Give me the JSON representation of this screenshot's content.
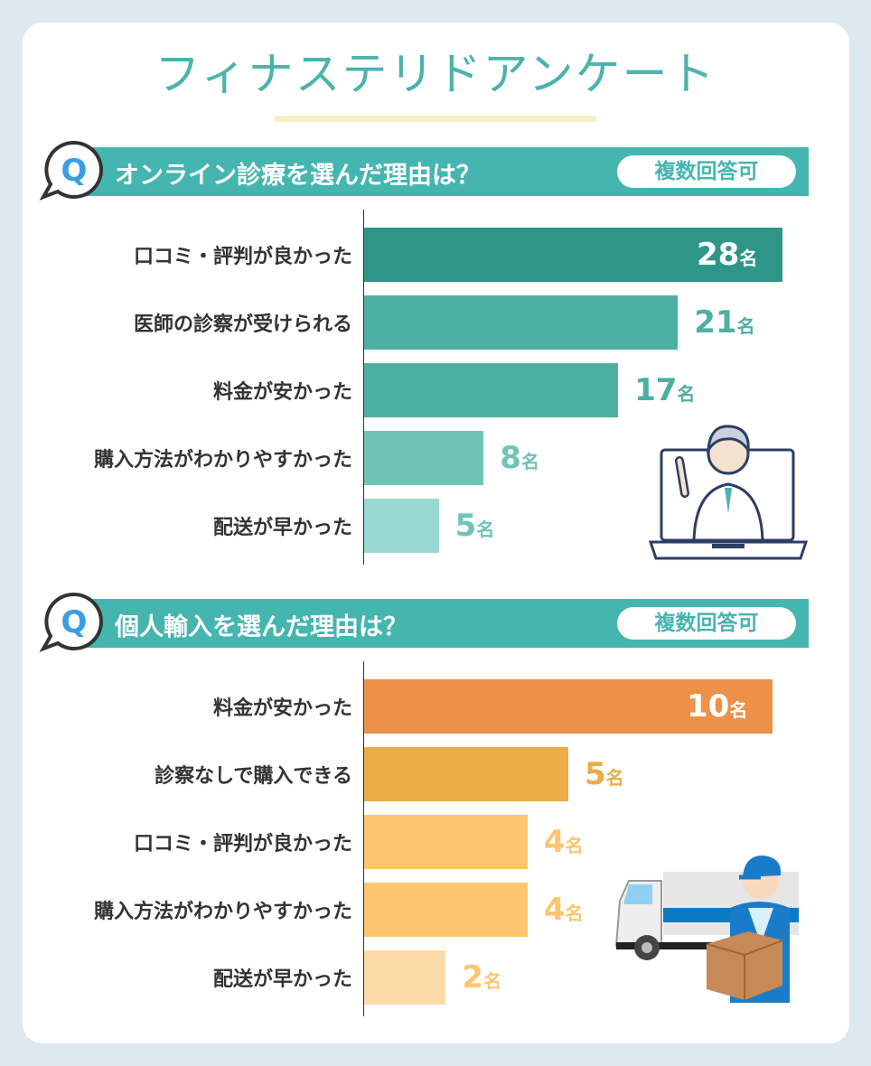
{
  "title": "フィナステリドアンケート",
  "colors": {
    "background": "#dce9ee",
    "accent": "#45b5b0",
    "title": "#4bb3ac",
    "q_icon": "#3a9ee4"
  },
  "chart_data": [
    {
      "type": "bar",
      "orientation": "horizontal",
      "title": "オンライン診療を選んだ理由は？",
      "badge": "複数回答可",
      "unit": "名",
      "categories": [
        "口コミ・評判が良かった",
        "医師の診察が受けられる",
        "料金が安かった",
        "購入方法がわかりやすかった",
        "配送が早かった"
      ],
      "values": [
        28,
        21,
        17,
        8,
        5
      ],
      "colors": [
        "#2e9686",
        "#4db0a3",
        "#4cafa2",
        "#6fc4b7",
        "#98dad2"
      ],
      "label_colors": [
        "#ffffff",
        "#4db0a3",
        "#4cafa2",
        "#6fc4b7",
        "#6fc4b7"
      ],
      "xlim": [
        0,
        28
      ],
      "grid": false
    },
    {
      "type": "bar",
      "orientation": "horizontal",
      "title": "個人輸入を選んだ理由は？",
      "badge": "複数回答可",
      "unit": "名",
      "categories": [
        "料金が安かった",
        "診察なしで購入できる",
        "口コミ・評判が良かった",
        "購入方法がわかりやすかった",
        "配送が早かった"
      ],
      "values": [
        10,
        5,
        4,
        4,
        2
      ],
      "colors": [
        "#ed9148",
        "#edab48",
        "#fdc56f",
        "#fdc56f",
        "#fddba7"
      ],
      "label_colors": [
        "#ffffff",
        "#edab48",
        "#fdc56f",
        "#fdc56f",
        "#fdc56f"
      ],
      "xlim": [
        0,
        10
      ],
      "grid": false
    }
  ],
  "q_letter": "Q",
  "icons": [
    "speech-bubble-q-icon",
    "doctor-laptop-illustration",
    "delivery-truck-illustration"
  ]
}
